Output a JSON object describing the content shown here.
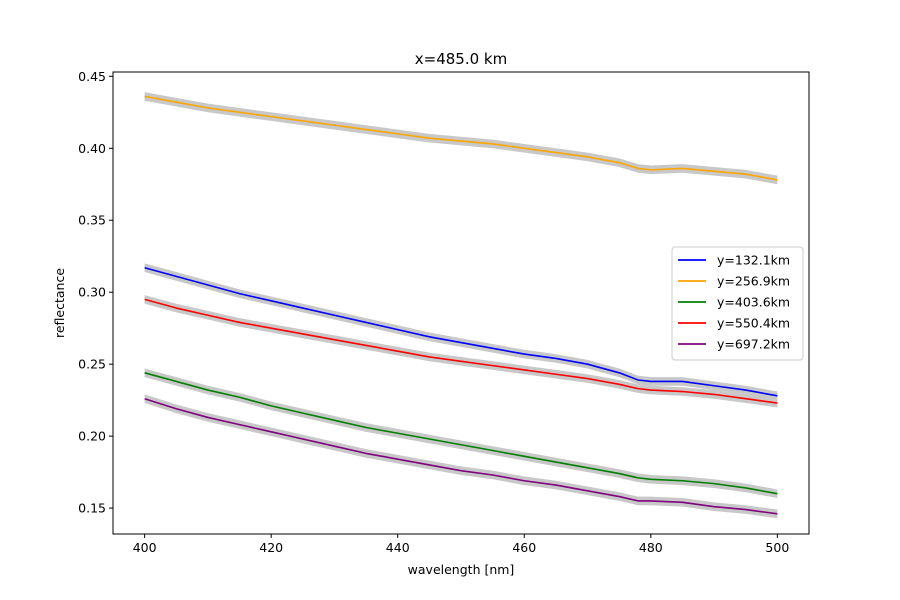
{
  "chart_data": {
    "type": "line",
    "title": "x=485.0 km",
    "xlabel": "wavelength [nm]",
    "ylabel": "reflectance",
    "xlim": [
      395,
      505
    ],
    "ylim": [
      0.132,
      0.453
    ],
    "xticks": [
      400,
      420,
      440,
      460,
      480,
      500
    ],
    "yticks": [
      0.15,
      0.2,
      0.25,
      0.3,
      0.35,
      0.4,
      0.45
    ],
    "grid": false,
    "legend_position": "center-right",
    "uncertainty_band_color": "#c8c8c8",
    "x": [
      400,
      405,
      410,
      415,
      420,
      425,
      430,
      435,
      440,
      445,
      450,
      455,
      460,
      465,
      470,
      475,
      478,
      480,
      485,
      490,
      495,
      500
    ],
    "series": [
      {
        "name": "y=132.1km",
        "color": "#0000ff",
        "values": [
          0.317,
          0.311,
          0.305,
          0.299,
          0.294,
          0.289,
          0.284,
          0.279,
          0.274,
          0.269,
          0.265,
          0.261,
          0.257,
          0.254,
          0.25,
          0.244,
          0.239,
          0.238,
          0.238,
          0.235,
          0.232,
          0.228
        ]
      },
      {
        "name": "y=256.9km",
        "color": "#ffa500",
        "values": [
          0.436,
          0.432,
          0.428,
          0.425,
          0.422,
          0.419,
          0.416,
          0.413,
          0.41,
          0.407,
          0.405,
          0.403,
          0.4,
          0.397,
          0.394,
          0.39,
          0.386,
          0.385,
          0.386,
          0.384,
          0.382,
          0.378
        ]
      },
      {
        "name": "y=403.6km",
        "color": "#008000",
        "values": [
          0.244,
          0.238,
          0.232,
          0.227,
          0.221,
          0.216,
          0.211,
          0.206,
          0.202,
          0.198,
          0.194,
          0.19,
          0.186,
          0.182,
          0.178,
          0.174,
          0.171,
          0.17,
          0.169,
          0.167,
          0.164,
          0.16
        ]
      },
      {
        "name": "y=550.4km",
        "color": "#ff0000",
        "values": [
          0.295,
          0.289,
          0.284,
          0.279,
          0.275,
          0.271,
          0.267,
          0.263,
          0.259,
          0.255,
          0.252,
          0.249,
          0.246,
          0.243,
          0.24,
          0.236,
          0.233,
          0.232,
          0.231,
          0.229,
          0.226,
          0.223
        ]
      },
      {
        "name": "y=697.2km",
        "color": "#800080",
        "values": [
          0.226,
          0.219,
          0.213,
          0.208,
          0.203,
          0.198,
          0.193,
          0.188,
          0.184,
          0.18,
          0.176,
          0.173,
          0.169,
          0.166,
          0.162,
          0.158,
          0.155,
          0.155,
          0.154,
          0.151,
          0.149,
          0.146
        ]
      }
    ]
  }
}
